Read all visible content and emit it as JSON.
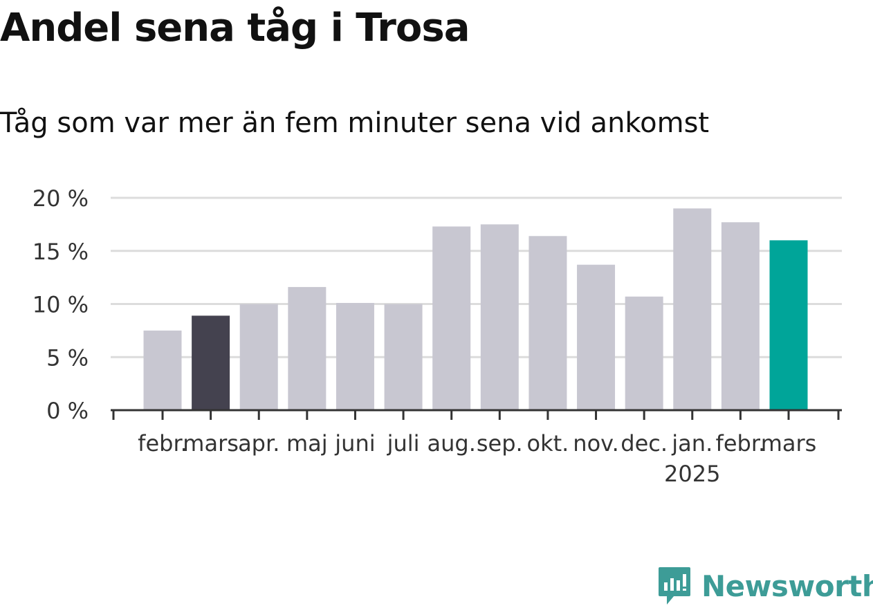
{
  "title": "Andel sena tåg i Trosa",
  "subtitle": "Tåg som var mer än fem minuter sena vid ankomst",
  "brand": {
    "name": "Newsworthy",
    "icon": "newsworthy-logo-icon",
    "color": "#3d9c97"
  },
  "colors": {
    "default_bar": "#c8c7d1",
    "comparison_bar": "#44424f",
    "current_bar": "#00a599",
    "grid": "#dcdcdc",
    "axis": "#333333",
    "text": "#333333"
  },
  "chart_data": {
    "type": "bar",
    "title": "Andel sena tåg i Trosa",
    "subtitle": "Tåg som var mer än fem minuter sena vid ankomst",
    "categories": [
      "febr.",
      "mars",
      "apr.",
      "maj",
      "juni",
      "juli",
      "aug.",
      "sep.",
      "okt.",
      "nov.",
      "dec.",
      "jan.",
      "febr.",
      "mars"
    ],
    "year_labels": {
      "11": "2025"
    },
    "values": [
      7.5,
      8.9,
      10.0,
      11.6,
      10.1,
      10.0,
      17.3,
      17.5,
      16.4,
      13.7,
      10.7,
      19.0,
      17.7,
      16.0
    ],
    "highlight": {
      "1": "comparison",
      "13": "current"
    },
    "ylim": [
      0,
      20
    ],
    "yticks": [
      0,
      5,
      10,
      15,
      20
    ],
    "ytick_labels": [
      "0 %",
      "5 %",
      "10 %",
      "15 %",
      "20 %"
    ],
    "grid": true,
    "xlabel": "",
    "ylabel": ""
  }
}
